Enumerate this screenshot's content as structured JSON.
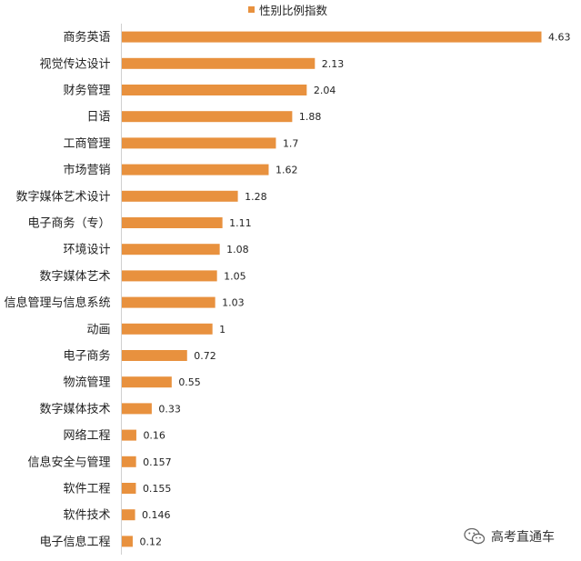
{
  "chart_data": {
    "type": "bar",
    "orientation": "horizontal",
    "legend": {
      "label": "性别比例指数",
      "placement": "top"
    },
    "bar_color": "#E8913E",
    "categories": [
      "商务英语",
      "视觉传达设计",
      "财务管理",
      "日语",
      "工商管理",
      "市场营销",
      "数字媒体艺术设计",
      "电子商务（专）",
      "环境设计",
      "数字媒体艺术",
      "信息管理与信息系统",
      "动画",
      "电子商务",
      "物流管理",
      "数字媒体技术",
      "网络工程",
      "信息安全与管理",
      "软件工程",
      "软件技术",
      "电子信息工程"
    ],
    "values": [
      4.63,
      2.13,
      2.04,
      1.88,
      1.7,
      1.62,
      1.28,
      1.11,
      1.08,
      1.05,
      1.03,
      1,
      0.72,
      0.55,
      0.33,
      0.16,
      0.157,
      0.155,
      0.146,
      0.12
    ],
    "value_labels": [
      "4.63",
      "2.13",
      "2.04",
      "1.88",
      "1.7",
      "1.62",
      "1.28",
      "1.11",
      "1.08",
      "1.05",
      "1.03",
      "1",
      "0.72",
      "0.55",
      "0.33",
      "0.16",
      "0.157",
      "0.155",
      "0.146",
      "0.12"
    ],
    "xlim": [
      0,
      4.63
    ],
    "grid": false
  },
  "watermark": {
    "text": "高考直通车",
    "icon": "wechat-icon"
  }
}
